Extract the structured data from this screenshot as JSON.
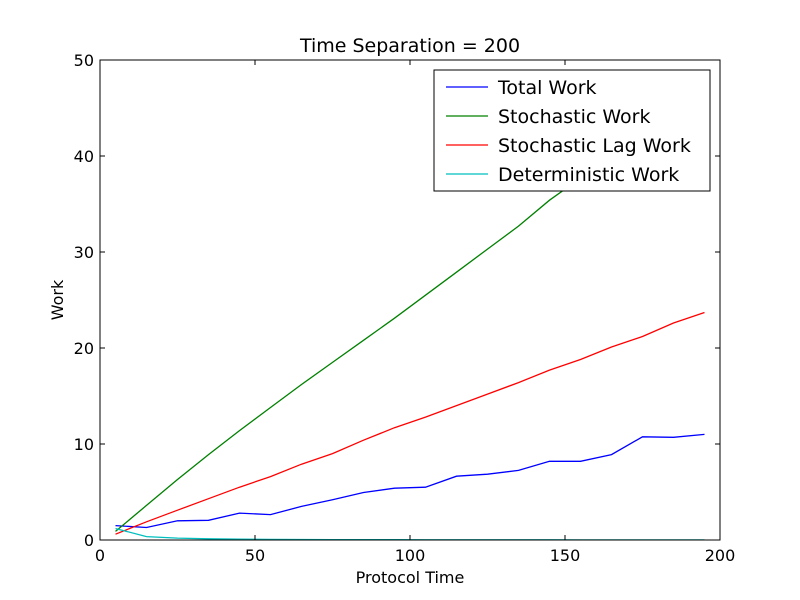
{
  "chart_data": {
    "type": "line",
    "title": "Time Separation = 200",
    "xlabel": "Protocol Time",
    "ylabel": "Work",
    "xlim": [
      0,
      200
    ],
    "ylim": [
      0,
      50
    ],
    "xticks": [
      0,
      50,
      100,
      150,
      200
    ],
    "yticks": [
      0,
      10,
      20,
      30,
      40,
      50
    ],
    "grid": false,
    "legend_position": "top-right",
    "x": [
      5,
      15,
      25,
      35,
      45,
      55,
      65,
      75,
      85,
      95,
      105,
      115,
      125,
      135,
      145,
      155,
      165,
      175,
      185,
      195
    ],
    "series": [
      {
        "name": "Total Work",
        "color": "#0000ff",
        "values": [
          1.5,
          1.3,
          2.0,
          2.05,
          2.8,
          2.65,
          3.5,
          4.2,
          4.95,
          5.4,
          5.5,
          6.65,
          6.85,
          7.25,
          8.2,
          8.2,
          8.9,
          10.75,
          10.7,
          11.0
        ]
      },
      {
        "name": "Stochastic Work",
        "color": "#008000",
        "values": [
          0.9,
          3.6,
          6.3,
          8.9,
          11.4,
          13.8,
          16.2,
          18.5,
          20.8,
          23.1,
          25.5,
          27.9,
          30.3,
          32.7,
          35.4,
          37.7,
          40.2,
          42.6,
          45.1,
          47.6
        ]
      },
      {
        "name": "Stochastic Lag Work",
        "color": "#ff0000",
        "values": [
          0.6,
          1.9,
          3.1,
          4.3,
          5.5,
          6.6,
          7.9,
          9.0,
          10.4,
          11.7,
          12.8,
          14.0,
          15.2,
          16.4,
          17.7,
          18.8,
          20.1,
          21.2,
          22.6,
          23.7
        ]
      },
      {
        "name": "Deterministic Work",
        "color": "#00bfbf",
        "values": [
          1.2,
          0.35,
          0.2,
          0.12,
          0.08,
          0.06,
          0.05,
          0.04,
          0.03,
          0.03,
          0.02,
          0.02,
          0.02,
          0.02,
          0.02,
          0.01,
          0.01,
          0.01,
          0.01,
          0.01
        ]
      }
    ]
  }
}
